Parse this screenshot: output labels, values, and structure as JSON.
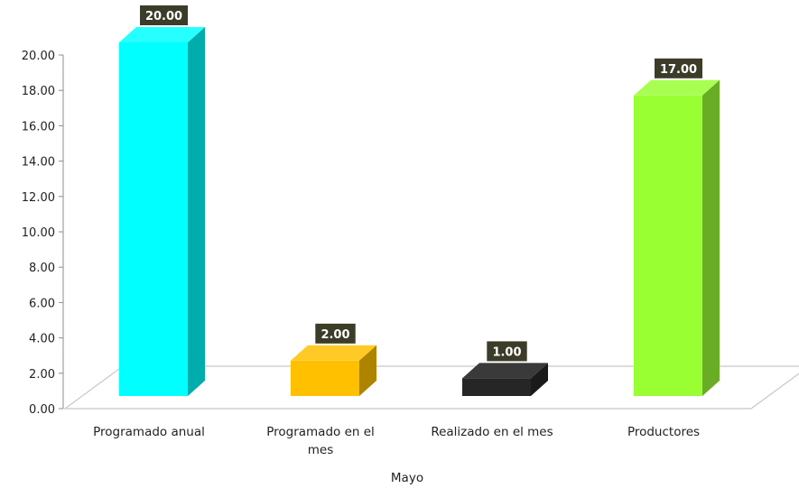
{
  "chart_data": {
    "type": "bar",
    "xlabel": "Mayo",
    "ylabel": "",
    "ylim": [
      0,
      20
    ],
    "y_ticks": [
      "0.00",
      "2.00",
      "4.00",
      "6.00",
      "8.00",
      "10.00",
      "12.00",
      "14.00",
      "16.00",
      "18.00",
      "20.00"
    ],
    "categories": [
      [
        "Programado anual"
      ],
      [
        "Programado en el",
        "mes"
      ],
      [
        "Realizado en el mes"
      ],
      [
        "Productores"
      ]
    ],
    "values": [
      20,
      2,
      1,
      17
    ],
    "value_labels": [
      "20.00",
      "2.00",
      "1.00",
      "17.00"
    ],
    "colors": [
      "#00FFFF",
      "#FFC000",
      "#262626",
      "#99FF33"
    ],
    "grid": false,
    "legend": "none",
    "style": "3d-column"
  }
}
